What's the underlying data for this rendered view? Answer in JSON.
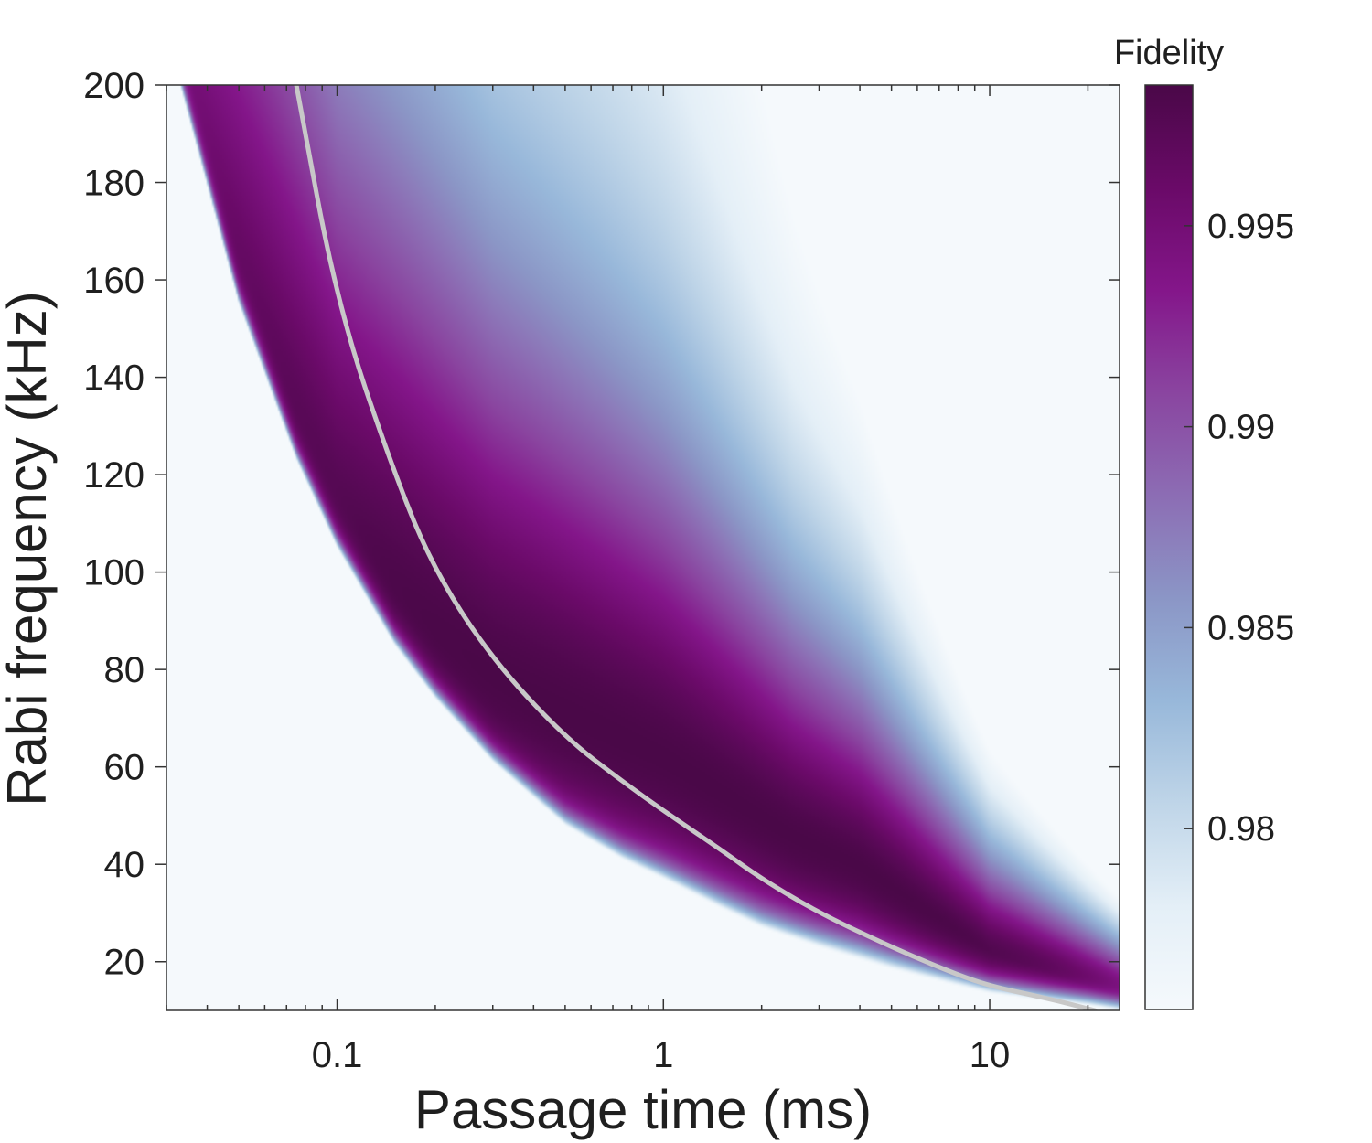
{
  "chart_data": {
    "type": "heatmap",
    "xlabel": "Passage time (ms)",
    "ylabel": "Rabi frequency (kHz)",
    "colorbar_label": "Fidelity",
    "x_scale": "log",
    "xlim": [
      0.03,
      25
    ],
    "ylim": [
      10,
      200
    ],
    "x_ticks": [
      0.1,
      1,
      10
    ],
    "x_tick_labels": [
      "0.1",
      "1",
      "10"
    ],
    "y_ticks": [
      20,
      40,
      60,
      80,
      100,
      120,
      140,
      160,
      180,
      200
    ],
    "y_tick_labels": [
      "20",
      "40",
      "60",
      "80",
      "100",
      "120",
      "140",
      "160",
      "180",
      "200"
    ],
    "colorbar_range": [
      0.9755,
      0.9985
    ],
    "colorbar_ticks": [
      0.98,
      0.985,
      0.99,
      0.995
    ],
    "colorbar_tick_labels": [
      "0.98",
      "0.985",
      "0.99",
      "0.995"
    ],
    "colormap": [
      "#f5f9fc",
      "#e4eff7",
      "#bfd5e8",
      "#98b8da",
      "#8b96c6",
      "#8c6db4",
      "#8a45a0",
      "#84168a",
      "#6a0a68",
      "#4a0848"
    ],
    "curve_color": "#c8c8c8",
    "optimal_curve": {
      "x": [
        0.075,
        0.1,
        0.15,
        0.2,
        0.3,
        0.5,
        0.75,
        1,
        1.5,
        2,
        3,
        5,
        7.5,
        10,
        15,
        21
      ],
      "y": [
        200,
        155,
        120,
        100,
        82,
        66,
        57,
        51,
        43,
        37,
        30,
        23,
        18,
        15,
        12.5,
        10
      ]
    },
    "boundary_curve": {
      "x": [
        0.033,
        0.05,
        0.075,
        0.1,
        0.15,
        0.2,
        0.3,
        0.5,
        0.75,
        1,
        1.5,
        2,
        3,
        5,
        7.5,
        10,
        15,
        20,
        25
      ],
      "y": [
        200,
        155,
        123,
        105,
        85,
        74,
        61,
        48,
        41,
        37,
        31,
        27,
        23,
        18.5,
        15.5,
        13.5,
        12,
        11,
        10
      ]
    },
    "peak_ridge": {
      "x": [
        0.03,
        0.1,
        0.3,
        1,
        2.5,
        4,
        10,
        25
      ],
      "y": [
        150,
        100,
        78,
        62,
        46,
        40,
        22,
        13
      ]
    }
  }
}
